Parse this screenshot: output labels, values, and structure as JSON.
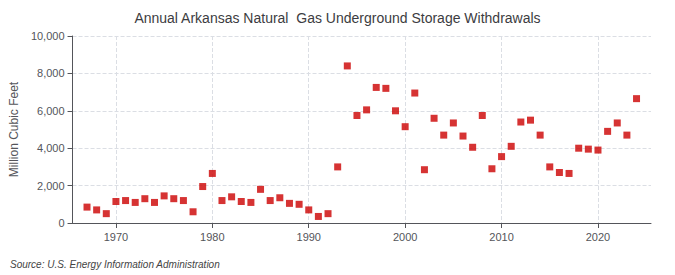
{
  "chart_data": {
    "type": "scatter",
    "title": "Annual Arkansas Natural  Gas Underground Storage Withdrawals",
    "ylabel": "Million Cubic Feet",
    "source": "Source: U.S. Energy Information Administration",
    "color": "#cc0000",
    "marker": "square",
    "grid": true,
    "x": [
      1967,
      1968,
      1969,
      1970,
      1971,
      1972,
      1973,
      1974,
      1975,
      1976,
      1977,
      1978,
      1979,
      1980,
      1981,
      1982,
      1983,
      1984,
      1985,
      1986,
      1987,
      1988,
      1989,
      1990,
      1991,
      1992,
      1993,
      1994,
      1995,
      1996,
      1997,
      1998,
      1999,
      2000,
      2001,
      2002,
      2003,
      2004,
      2005,
      2006,
      2007,
      2008,
      2009,
      2010,
      2011,
      2012,
      2013,
      2014,
      2015,
      2016,
      2017,
      2018,
      2019,
      2020,
      2021,
      2022,
      2023,
      2024
    ],
    "values": [
      850,
      700,
      500,
      1150,
      1200,
      1100,
      1300,
      1100,
      1450,
      1300,
      1200,
      600,
      1950,
      2650,
      1200,
      1400,
      1150,
      1100,
      1800,
      1200,
      1350,
      1050,
      1000,
      700,
      350,
      500,
      3000,
      8400,
      5750,
      6050,
      7250,
      7200,
      6000,
      5150,
      6950,
      2850,
      5600,
      4700,
      5350,
      4650,
      4050,
      5750,
      2900,
      3550,
      4100,
      5400,
      5500,
      4700,
      3000,
      2700,
      2650,
      4000,
      3950,
      3900,
      4900,
      5350,
      4700,
      6650
    ],
    "xlim": [
      1965.5,
      2025.5
    ],
    "xticks": [
      1970,
      1980,
      1990,
      2000,
      2010,
      2020
    ],
    "ylim": [
      0,
      10000
    ],
    "yticks": [
      0,
      {
        "value": 2000,
        "label": "2,000"
      },
      {
        "value": 4000,
        "label": "4,000"
      },
      {
        "value": 6000,
        "label": "6,000"
      },
      {
        "value": 8000,
        "label": "8,000"
      },
      {
        "value": 10000,
        "label": "10,000"
      }
    ]
  }
}
